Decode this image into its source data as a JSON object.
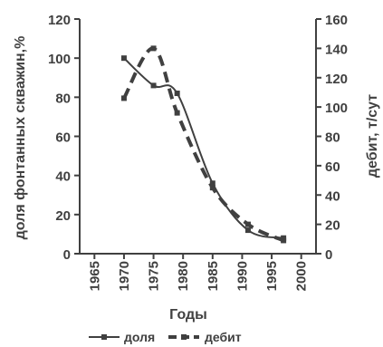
{
  "chart_data": {
    "type": "line",
    "xlabel": "Годы",
    "ylabel_left": "доля фонтанных скважин,%",
    "ylabel_right": "дебит, т/сут",
    "x_ticks": [
      1965,
      1970,
      1975,
      1980,
      1985,
      1990,
      1995,
      2000
    ],
    "xlim": [
      1962.5,
      2002.5
    ],
    "y_left_ticks": [
      0,
      20,
      40,
      60,
      80,
      100,
      120
    ],
    "ylim_left": [
      0,
      120
    ],
    "y_right_ticks": [
      0,
      20,
      40,
      60,
      80,
      100,
      120,
      140,
      160
    ],
    "ylim_right": [
      0,
      160
    ],
    "grid": false,
    "legend_position": "bottom",
    "series": [
      {
        "name": "доля",
        "axis": "left",
        "style": "solid-marker",
        "color": "#404040",
        "x": [
          1970,
          1975,
          1979,
          1985,
          1991,
          1997
        ],
        "y": [
          100,
          86,
          82,
          36,
          12,
          8
        ]
      },
      {
        "name": "дебит",
        "axis": "right",
        "style": "dashed-marker",
        "color": "#404040",
        "x": [
          1970,
          1975,
          1979,
          1985,
          1991,
          1997
        ],
        "y": [
          106,
          140,
          96,
          45,
          20,
          9
        ]
      }
    ]
  }
}
